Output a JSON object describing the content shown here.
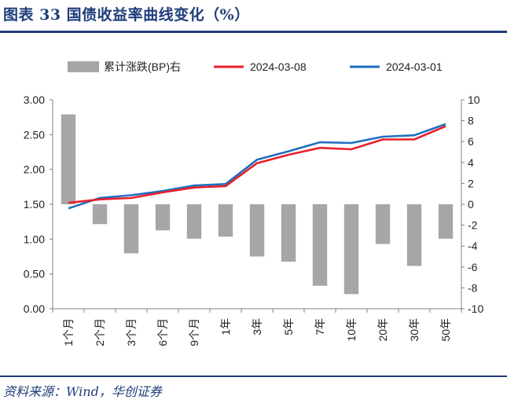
{
  "title": "图表 33    国债收益率曲线变化（%）",
  "source": "资料来源：Wind，华创证券",
  "colors": {
    "title": "#1f3d7a",
    "bar": "#a6a6a6",
    "line_0308": "#e8202a",
    "line_0301": "#1f6fbf",
    "axis": "#808080"
  },
  "chart_data": {
    "type": "bar+line",
    "categories": [
      "1个月",
      "2个月",
      "3个月",
      "6个月",
      "9个月",
      "1年",
      "3年",
      "5年",
      "7年",
      "10年",
      "20年",
      "30年",
      "50年"
    ],
    "left_axis": {
      "ylim": [
        0,
        3
      ],
      "ticks": [
        "0.00",
        "0.50",
        "1.00",
        "1.50",
        "2.00",
        "2.50",
        "3.00"
      ]
    },
    "right_axis": {
      "ylim": [
        -10,
        10
      ],
      "ticks": [
        "-10",
        "-8",
        "-6",
        "-4",
        "-2",
        "0",
        "2",
        "4",
        "6",
        "8",
        "10"
      ]
    },
    "legend_position": "top",
    "series": [
      {
        "name": "累计涨跌(BP)右",
        "type": "bar",
        "axis": "right",
        "values": [
          8.6,
          -1.9,
          -4.7,
          -2.5,
          -3.3,
          -3.1,
          -5.0,
          -5.5,
          -7.8,
          -8.6,
          -3.8,
          -5.9,
          -3.3
        ]
      },
      {
        "name": "2024-03-08",
        "type": "line",
        "axis": "left",
        "values": [
          1.52,
          1.57,
          1.59,
          1.67,
          1.74,
          1.76,
          2.09,
          2.21,
          2.31,
          2.29,
          2.43,
          2.43,
          2.62
        ]
      },
      {
        "name": "2024-03-01",
        "type": "line",
        "axis": "left",
        "values": [
          1.44,
          1.59,
          1.63,
          1.69,
          1.77,
          1.79,
          2.14,
          2.26,
          2.39,
          2.38,
          2.47,
          2.49,
          2.65
        ]
      }
    ]
  }
}
